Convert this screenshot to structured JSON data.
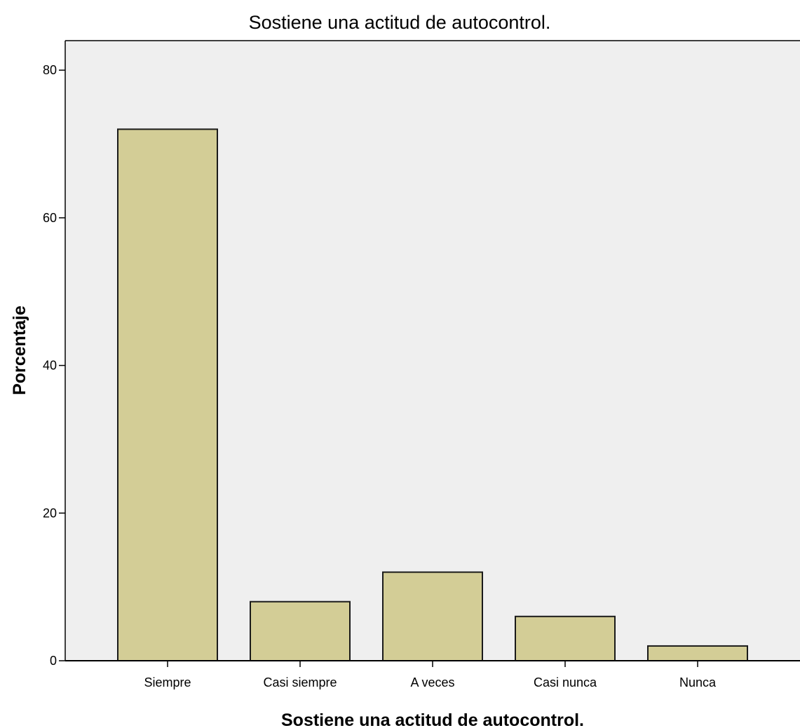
{
  "chart_data": {
    "type": "bar",
    "title": "Sostiene una actitud de autocontrol.",
    "xlabel": "Sostiene una actitud de autocontrol.",
    "ylabel": "Porcentaje",
    "categories": [
      "Siempre",
      "Casi siempre",
      "A veces",
      "Casi nunca",
      "Nunca"
    ],
    "values": [
      72,
      8,
      12,
      6,
      2
    ],
    "ylim": [
      0,
      84
    ],
    "yticks": [
      0,
      20,
      40,
      60,
      80
    ],
    "ytick_labels": [
      "0",
      "20",
      "40",
      "60",
      "80"
    ],
    "grid": false,
    "legend": "none",
    "colors": {
      "bar_fill": "#d3cd96",
      "bar_stroke": "#1a1a1a",
      "plot_background": "#efefef",
      "axis": "#000000"
    }
  }
}
